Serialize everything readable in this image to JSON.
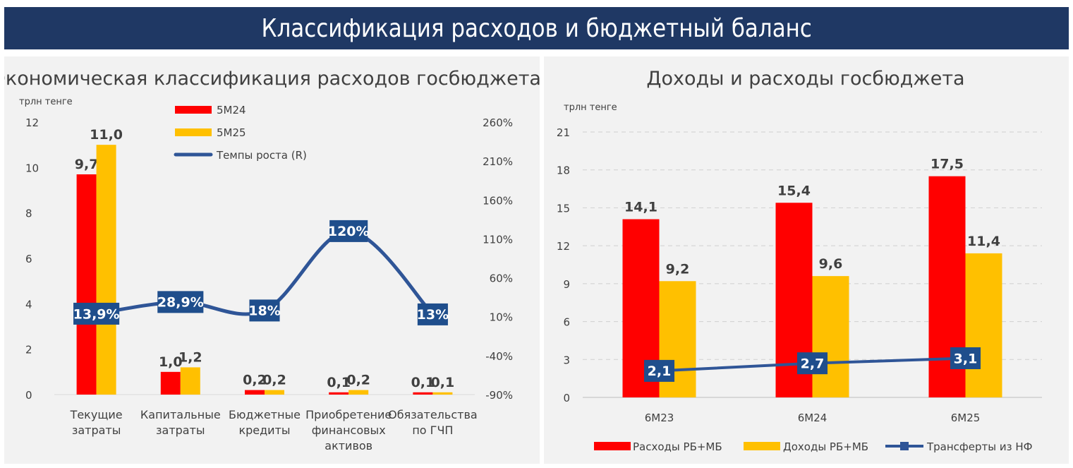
{
  "header": {
    "title": "Классификация расходов и бюджетный баланс"
  },
  "colors": {
    "red": "#ff0000",
    "yellow": "#ffc000",
    "navy": "#1f3864",
    "line": "#2f5597",
    "banner": "#1f3864"
  },
  "chart_data": [
    {
      "type": "bar",
      "title": "Экономическая классификация расходов госбюджета",
      "unit_label": "трлн тенге",
      "categories": [
        [
          "Текущие",
          "затраты"
        ],
        [
          "Капитальные",
          "затраты"
        ],
        [
          "Бюджетные",
          "кредиты"
        ],
        [
          "Приобретение",
          "финансовых",
          "активов"
        ],
        [
          "Обязательства",
          "по ГЧП"
        ]
      ],
      "series": [
        {
          "name": "5М24",
          "values": [
            9.7,
            1.0,
            0.2,
            0.1,
            0.1
          ],
          "labels": [
            "9,7",
            "1,0",
            "0,2",
            "0,1",
            "0,1"
          ],
          "color": "#ff0000"
        },
        {
          "name": "5М25",
          "values": [
            11.0,
            1.2,
            0.2,
            0.2,
            0.1
          ],
          "labels": [
            "11,0",
            "1,2",
            "0,2",
            "0,2",
            "0,1"
          ],
          "color": "#ffc000"
        }
      ],
      "line": {
        "name": "Темпы роста (R)",
        "values": [
          13.9,
          28.9,
          18,
          120,
          13
        ],
        "labels": [
          "13,9%",
          "28,9%",
          "18%",
          "120%",
          "13%"
        ],
        "color": "#2f5597"
      },
      "ylim": [
        0,
        12
      ],
      "yticks": [
        "0",
        "2",
        "4",
        "6",
        "8",
        "10",
        "12"
      ],
      "y2lim": [
        -90,
        260
      ],
      "y2ticks": [
        "-90%",
        "-40%",
        "10%",
        "60%",
        "110%",
        "160%",
        "210%",
        "260%"
      ],
      "grid": false,
      "legend_position": "top-center"
    },
    {
      "type": "bar",
      "title": "Доходы и расходы госбюджета",
      "unit_label": "трлн тенге",
      "categories": [
        "6М23",
        "6М24",
        "6М25"
      ],
      "series": [
        {
          "name": "Расходы РБ+МБ",
          "values": [
            14.1,
            15.4,
            17.5
          ],
          "labels": [
            "14,1",
            "15,4",
            "17,5"
          ],
          "color": "#ff0000"
        },
        {
          "name": "Доходы РБ+МБ",
          "values": [
            9.2,
            9.6,
            11.4
          ],
          "labels": [
            "9,2",
            "9,6",
            "11,4"
          ],
          "color": "#ffc000"
        }
      ],
      "line": {
        "name": "Трансферты из НФ",
        "values": [
          2.1,
          2.7,
          3.1
        ],
        "labels": [
          "2,1",
          "2,7",
          "3,1"
        ],
        "color": "#2f5597"
      },
      "ylim": [
        0,
        21
      ],
      "yticks": [
        "0",
        "3",
        "6",
        "9",
        "12",
        "15",
        "18",
        "21"
      ],
      "grid": true,
      "legend_position": "bottom"
    }
  ]
}
